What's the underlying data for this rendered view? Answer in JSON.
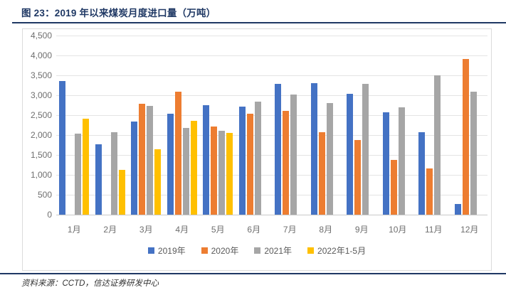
{
  "figure": {
    "title": "图 23：2019 年以来煤炭月度进口量（万吨）",
    "source": "资料来源：CCTD，信达证券研发中心"
  },
  "colors": {
    "title_navy": "#1F3864",
    "frame_border": "#DBDBDB",
    "gridline": "#E4E4E4",
    "axis_line": "#C9C9C9",
    "axis_text": "#6E6E6E",
    "legend_text": "#595959"
  },
  "chart_data": {
    "type": "bar",
    "title": "图 23：2019 年以来煤炭月度进口量（万吨）",
    "xlabel": "",
    "ylabel": "万吨",
    "categories": [
      "1月",
      "2月",
      "3月",
      "4月",
      "5月",
      "6月",
      "7月",
      "8月",
      "9月",
      "10月",
      "11月",
      "12月"
    ],
    "series": [
      {
        "name": "2019年",
        "color": "#4472C4",
        "values": [
          3350,
          1764,
          2348,
          2530,
          2747,
          2710,
          3289,
          3295,
          3029,
          2569,
          2078,
          277
        ]
      },
      {
        "name": "2020年",
        "color": "#ED7D31",
        "values": [
          null,
          null,
          2783,
          3095,
          2206,
          2529,
          2610,
          2066,
          1868,
          1373,
          1167,
          3908
        ]
      },
      {
        "name": "2021年",
        "color": "#A6A6A6",
        "values": [
          2040,
          2075,
          2733,
          2173,
          2104,
          2839,
          3018,
          2805,
          3288,
          2694,
          3505,
          3095
        ]
      },
      {
        "name": "2022年1-5月",
        "color": "#FFC000",
        "values": [
          2412,
          1127,
          1642,
          2355,
          2055,
          null,
          null,
          null,
          null,
          null,
          null,
          null
        ]
      }
    ],
    "ylim": [
      0,
      4500
    ],
    "ytick_step": 500,
    "ytick_labels": [
      "0",
      "500",
      "1,000",
      "1,500",
      "2,000",
      "2,500",
      "3,000",
      "3,500",
      "4,000",
      "4,500"
    ],
    "grid": true,
    "legend_position": "bottom"
  }
}
